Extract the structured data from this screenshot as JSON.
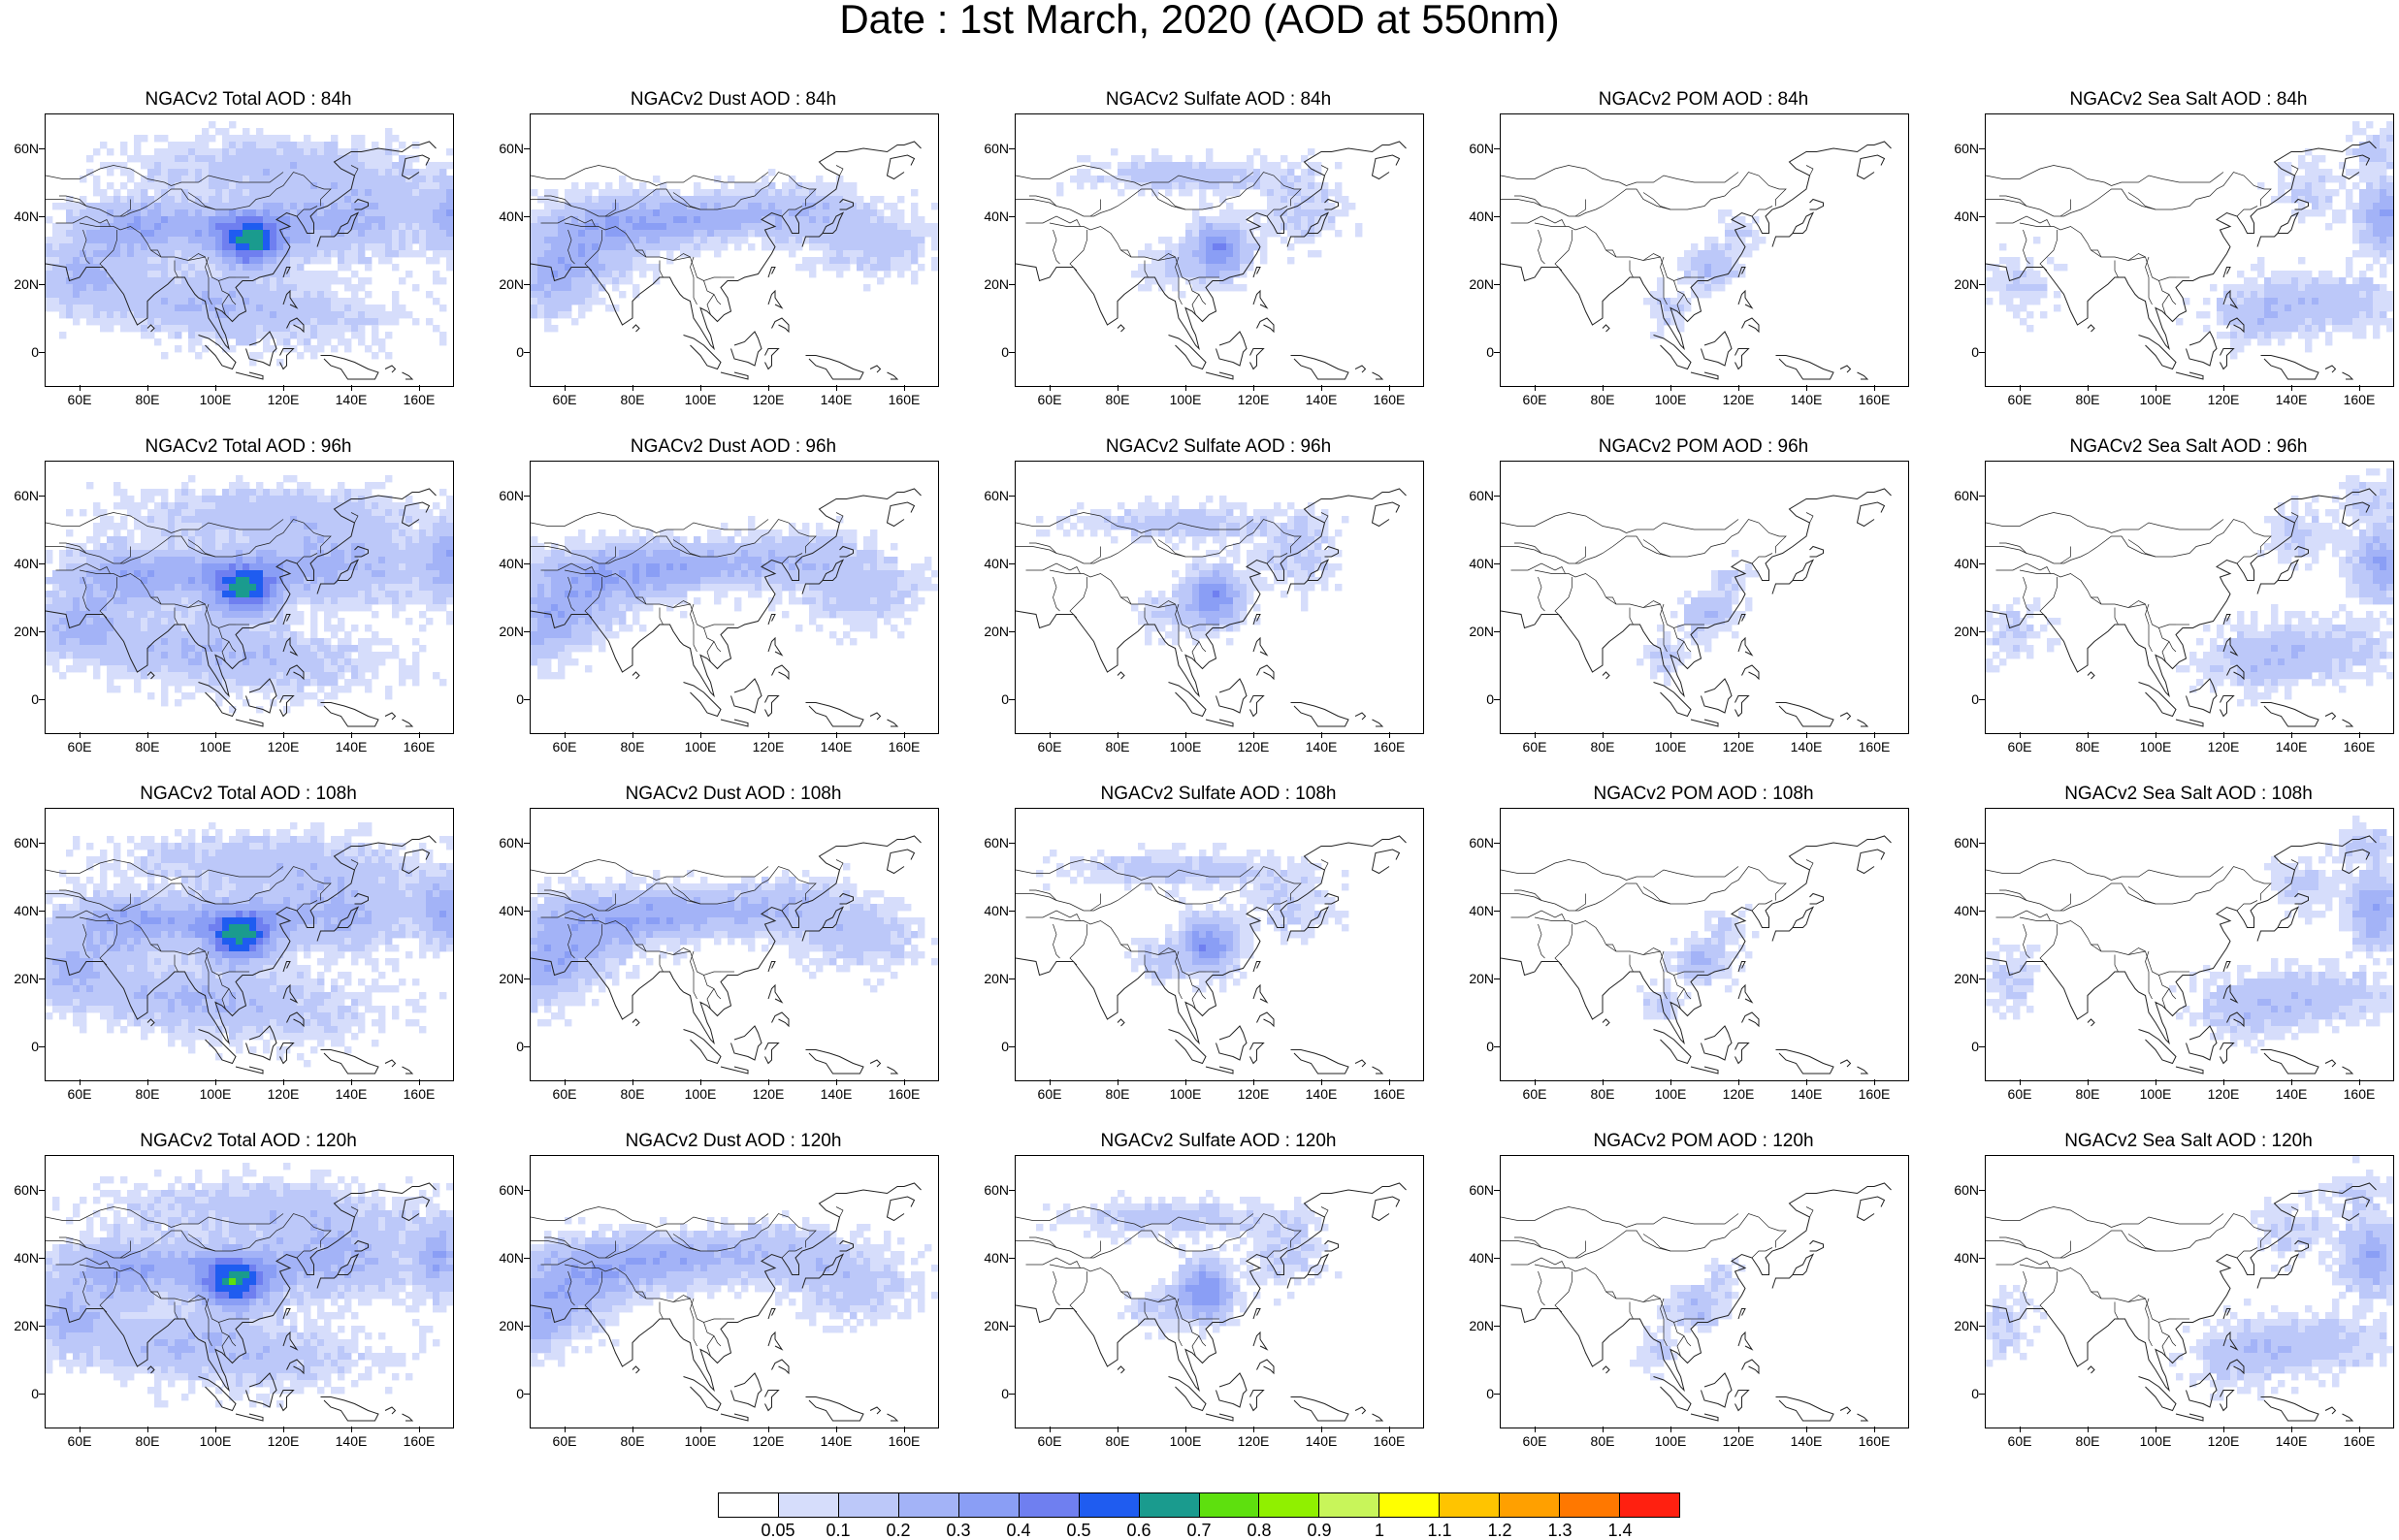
{
  "title": "Date : 1st March, 2020 (AOD at 550nm)",
  "x_ticks": [
    "60E",
    "80E",
    "100E",
    "120E",
    "140E",
    "160E"
  ],
  "x_tick_values": [
    60,
    80,
    100,
    120,
    140,
    160
  ],
  "y_ticks": [
    "60N",
    "40N",
    "20N",
    "0"
  ],
  "y_tick_values": [
    60,
    40,
    20,
    0
  ],
  "lon_range": [
    50,
    170
  ],
  "lat_range": [
    -10,
    70
  ],
  "panels": [
    {
      "title": "NGACv2 Total AOD : 84h",
      "species": "total",
      "hour": 84
    },
    {
      "title": "NGACv2 Dust AOD : 84h",
      "species": "dust",
      "hour": 84
    },
    {
      "title": "NGACv2 Sulfate AOD : 84h",
      "species": "sulfate",
      "hour": 84
    },
    {
      "title": "NGACv2 POM AOD : 84h",
      "species": "pom",
      "hour": 84
    },
    {
      "title": "NGACv2 Sea Salt AOD : 84h",
      "species": "seasalt",
      "hour": 84
    },
    {
      "title": "NGACv2 Total AOD : 96h",
      "species": "total",
      "hour": 96
    },
    {
      "title": "NGACv2 Dust AOD : 96h",
      "species": "dust",
      "hour": 96
    },
    {
      "title": "NGACv2 Sulfate AOD : 96h",
      "species": "sulfate",
      "hour": 96
    },
    {
      "title": "NGACv2 POM AOD : 96h",
      "species": "pom",
      "hour": 96
    },
    {
      "title": "NGACv2 Sea Salt AOD : 96h",
      "species": "seasalt",
      "hour": 96
    },
    {
      "title": "NGACv2 Total AOD : 108h",
      "species": "total",
      "hour": 108
    },
    {
      "title": "NGACv2 Dust AOD : 108h",
      "species": "dust",
      "hour": 108
    },
    {
      "title": "NGACv2 Sulfate AOD : 108h",
      "species": "sulfate",
      "hour": 108
    },
    {
      "title": "NGACv2 POM AOD : 108h",
      "species": "pom",
      "hour": 108
    },
    {
      "title": "NGACv2 Sea Salt AOD : 108h",
      "species": "seasalt",
      "hour": 108
    },
    {
      "title": "NGACv2 Total AOD : 120h",
      "species": "total",
      "hour": 120
    },
    {
      "title": "NGACv2 Dust AOD : 120h",
      "species": "dust",
      "hour": 120
    },
    {
      "title": "NGACv2 Sulfate AOD : 120h",
      "species": "sulfate",
      "hour": 120
    },
    {
      "title": "NGACv2 POM AOD : 120h",
      "species": "pom",
      "hour": 120
    },
    {
      "title": "NGACv2 Sea Salt  AOD : 120h",
      "species": "seasalt",
      "hour": 120
    }
  ],
  "colorbar": {
    "labels": [
      "0.05",
      "0.1",
      "0.2",
      "0.3",
      "0.4",
      "0.5",
      "0.6",
      "0.7",
      "0.8",
      "0.9",
      "1",
      "1.1",
      "1.2",
      "1.3",
      "1.4"
    ],
    "colors": [
      "#ffffff",
      "#d6ddfb",
      "#bcc8f9",
      "#a3b3f7",
      "#8a9ef5",
      "#6f7ff0",
      "#1f5cf0",
      "#1a9b8e",
      "#5ee00e",
      "#90f000",
      "#c8f55a",
      "#ffff00",
      "#ffc400",
      "#ffa000",
      "#ff7800",
      "#ff2010"
    ]
  }
}
